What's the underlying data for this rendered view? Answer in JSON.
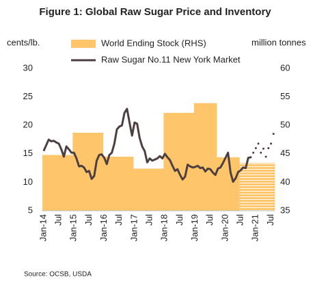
{
  "chart_data": {
    "type": "bar_line",
    "title": "Figure 1: Global Raw Sugar Price and Inventory",
    "y_label": "cents/lb.",
    "y2_label": "million tonnes",
    "source": "Source: OCSB, USDA",
    "categories": [
      "Jan-14",
      null,
      null,
      null,
      null,
      null,
      "Jul",
      null,
      null,
      null,
      null,
      null,
      "Jan-15",
      null,
      null,
      null,
      null,
      null,
      "Jul",
      null,
      null,
      null,
      null,
      null,
      "Jan-16",
      null,
      null,
      null,
      null,
      null,
      "Jul",
      null,
      null,
      null,
      null,
      null,
      "Jan-17",
      null,
      null,
      null,
      null,
      null,
      "Jul",
      null,
      null,
      null,
      null,
      null,
      "Jan-18",
      null,
      null,
      null,
      null,
      null,
      "Jul",
      null,
      null,
      null,
      null,
      null,
      "Jan-19",
      null,
      null,
      null,
      null,
      null,
      "Jul",
      null,
      null,
      null,
      null,
      null,
      "Jan-20",
      null,
      null,
      null,
      null,
      null,
      "Jul",
      null,
      null,
      null,
      null,
      null,
      "Jan-21",
      null,
      null,
      null,
      null,
      null,
      "Jul",
      null
    ],
    "ylim": [
      5,
      30
    ],
    "yticks": [
      5,
      10,
      15,
      20,
      25,
      30
    ],
    "y2lim": [
      35,
      60
    ],
    "y2ticks": [
      35,
      40,
      45,
      50,
      55,
      60
    ],
    "series": [
      {
        "name": "World Ending Stock (RHS)",
        "kind": "bar",
        "axis": "y2",
        "color": "#ffc56b",
        "values": [
          44.8,
          44.8,
          44.8,
          44.8,
          44.8,
          44.8,
          44.8,
          44.8,
          44.8,
          44.8,
          44.8,
          44.8,
          48.7,
          48.7,
          48.7,
          48.7,
          48.7,
          48.7,
          48.7,
          48.7,
          48.7,
          48.7,
          48.7,
          48.7,
          44.5,
          44.5,
          44.5,
          44.5,
          44.5,
          44.5,
          44.5,
          44.5,
          44.5,
          44.5,
          44.5,
          44.5,
          42.4,
          42.4,
          42.4,
          42.4,
          42.4,
          42.4,
          42.4,
          42.4,
          42.4,
          42.4,
          42.4,
          42.4,
          52.2,
          52.2,
          52.2,
          52.2,
          52.2,
          52.2,
          52.2,
          52.2,
          52.2,
          52.2,
          52.2,
          52.2,
          53.9,
          53.9,
          53.9,
          53.9,
          53.9,
          53.9,
          53.9,
          53.9,
          53.9,
          44.4,
          44.4,
          44.4,
          44.4,
          44.4,
          44.4,
          44.4,
          44.4,
          44.4,
          null,
          null,
          null,
          null,
          null,
          null,
          null,
          null,
          null,
          null,
          null,
          null,
          null,
          null
        ]
      },
      {
        "kind": "bar",
        "axis": "y2",
        "color": "#ffc56b",
        "pattern": "hatch",
        "values": [
          null,
          null,
          null,
          null,
          null,
          null,
          null,
          null,
          null,
          null,
          null,
          null,
          null,
          null,
          null,
          null,
          null,
          null,
          null,
          null,
          null,
          null,
          null,
          null,
          null,
          null,
          null,
          null,
          null,
          null,
          null,
          null,
          null,
          null,
          null,
          null,
          null,
          null,
          null,
          null,
          null,
          null,
          null,
          null,
          null,
          null,
          null,
          null,
          null,
          null,
          null,
          null,
          null,
          null,
          null,
          null,
          null,
          null,
          null,
          null,
          null,
          null,
          null,
          null,
          null,
          null,
          null,
          null,
          null,
          null,
          null,
          null,
          null,
          null,
          null,
          null,
          null,
          null,
          43.4,
          43.4,
          43.4,
          43.4,
          43.4,
          43.4,
          43.4,
          43.4,
          43.4,
          43.4,
          43.4,
          43.4,
          43.4,
          43.4
        ]
      },
      {
        "name": "Raw Sugar No.11 New York Market",
        "kind": "line",
        "color": "#4d3f3f",
        "values": [
          15.5,
          16.5,
          17.5,
          17.2,
          17.3,
          17.0,
          16.8,
          15.8,
          14.5,
          16.3,
          15.8,
          15.2,
          15.2,
          14.2,
          12.8,
          12.9,
          12.6,
          11.8,
          12.0,
          10.6,
          11.1,
          13.8,
          14.8,
          14.9,
          14.3,
          13.2,
          14.8,
          15.2,
          16.8,
          19.3,
          19.8,
          20.0,
          22.2,
          22.9,
          20.5,
          18.2,
          20.5,
          20.3,
          17.8,
          16.3,
          15.5,
          13.5,
          14.2,
          13.8,
          14.0,
          14.2,
          14.6,
          14.2,
          15.0,
          14.4,
          13.9,
          12.9,
          12.0,
          12.3,
          11.3,
          10.5,
          11.0,
          13.1,
          12.8,
          12.6,
          12.7,
          12.9,
          12.5,
          12.6,
          11.9,
          12.4,
          12.3,
          11.7,
          11.3,
          12.4,
          12.6,
          13.4,
          14.3,
          15.2,
          11.7,
          10.1,
          10.7,
          11.8,
          12.1,
          12.6,
          12.5,
          14.3,
          14.4,
          null,
          null,
          null,
          null,
          null,
          null,
          null,
          null,
          null
        ]
      },
      {
        "kind": "line",
        "style": "dotted",
        "color": "#4d3f3f",
        "values": [
          null,
          null,
          null,
          null,
          null,
          null,
          null,
          null,
          null,
          null,
          null,
          null,
          null,
          null,
          null,
          null,
          null,
          null,
          null,
          null,
          null,
          null,
          null,
          null,
          null,
          null,
          null,
          null,
          null,
          null,
          null,
          null,
          null,
          null,
          null,
          null,
          null,
          null,
          null,
          null,
          null,
          null,
          null,
          null,
          null,
          null,
          null,
          null,
          null,
          null,
          null,
          null,
          null,
          null,
          null,
          null,
          null,
          null,
          null,
          null,
          null,
          null,
          null,
          null,
          null,
          null,
          null,
          null,
          null,
          null,
          null,
          null,
          null,
          null,
          null,
          null,
          null,
          null,
          null,
          null,
          null,
          null,
          14.4,
          15.2,
          16.0,
          16.8,
          15.2,
          15.9,
          14.5,
          16.0,
          16.8,
          18.5
        ]
      }
    ]
  }
}
